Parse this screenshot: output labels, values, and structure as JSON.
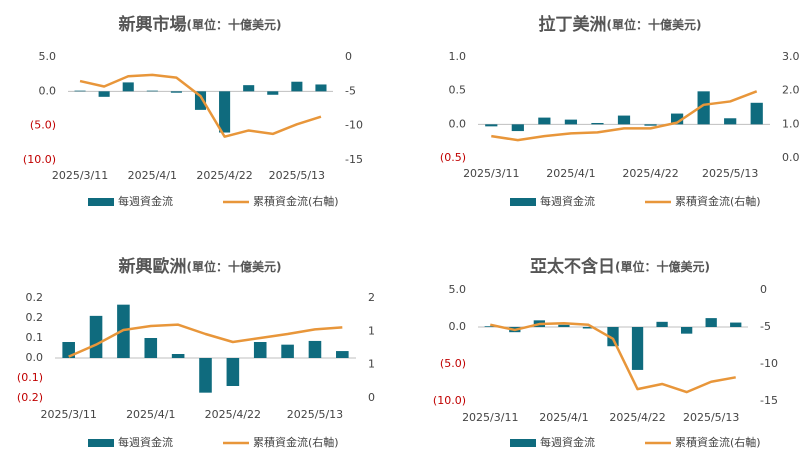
{
  "chart_data": [
    {
      "type": "bar-line",
      "title": "新興市場",
      "unit": "(單位：十億美元)",
      "categories": [
        "2025/3/11",
        null,
        null,
        "2025/4/1",
        null,
        null,
        "2025/4/22",
        null,
        null,
        "2025/5/13",
        null
      ],
      "series": [
        {
          "name": "每週資金流",
          "color": "#0f6b7e",
          "kind": "bar",
          "values": [
            0.1,
            -0.8,
            1.3,
            0.1,
            -0.2,
            -2.7,
            -6.0,
            0.9,
            -0.5,
            1.4,
            1.0
          ]
        },
        {
          "name": "累積資金流(右軸)",
          "color": "#e8963a",
          "kind": "line",
          "axis": "y2",
          "values": [
            -3.5,
            -4.3,
            -2.8,
            -2.6,
            -3.0,
            -5.7,
            -11.6,
            -10.7,
            -11.2,
            -9.8,
            -8.7
          ]
        }
      ],
      "ylim": [
        -10,
        5
      ],
      "yticks": [
        {
          "value": 5,
          "label": "5.0"
        },
        {
          "value": 0,
          "label": "0.0"
        },
        {
          "value": -5,
          "label": "(5.0)"
        },
        {
          "value": -10,
          "label": "(10.0)"
        }
      ],
      "y2lim": [
        -15,
        0
      ],
      "y2ticks": [
        0,
        -5,
        -10,
        -15
      ],
      "negative_tick_color": "#c00000",
      "grid": false,
      "legend": "bottom"
    },
    {
      "type": "bar-line",
      "title": "拉丁美洲",
      "unit": "(單位：十億美元)",
      "categories": [
        "2025/3/11",
        null,
        null,
        "2025/4/1",
        null,
        null,
        "2025/4/22",
        null,
        null,
        "2025/5/13",
        null
      ],
      "series": [
        {
          "name": "每週資金流",
          "color": "#0f6b7e",
          "kind": "bar",
          "values": [
            -0.03,
            -0.1,
            0.1,
            0.07,
            0.02,
            0.13,
            -0.02,
            0.16,
            0.49,
            0.09,
            0.32
          ]
        },
        {
          "name": "累積資金流(右軸)",
          "color": "#e8963a",
          "kind": "line",
          "axis": "y2",
          "values": [
            0.65,
            0.53,
            0.65,
            0.73,
            0.76,
            0.88,
            0.88,
            1.05,
            1.58,
            1.68,
            1.98
          ]
        }
      ],
      "ylim": [
        -0.5,
        1
      ],
      "yticks": [
        {
          "value": 1,
          "label": "1.0"
        },
        0.5,
        {
          "value": 0,
          "label": "0.0"
        },
        {
          "value": -0.5,
          "label": "(0.5)"
        }
      ],
      "y2lim": [
        0,
        3
      ],
      "y2ticks": [
        {
          "value": 3,
          "label": "3.0"
        },
        {
          "value": 2,
          "label": "2.0"
        },
        {
          "value": 1,
          "label": "1.0"
        },
        {
          "value": 0,
          "label": "0.0"
        }
      ],
      "negative_tick_color": "#c00000",
      "grid": false,
      "legend": "bottom"
    },
    {
      "type": "bar-line",
      "title": "新興歐洲",
      "unit": "(單位：十億美元)",
      "categories": [
        "2025/3/11",
        null,
        null,
        "2025/4/1",
        null,
        null,
        "2025/4/22",
        null,
        null,
        "2025/5/13",
        null
      ],
      "series": [
        {
          "name": "每週資金流",
          "color": "#0f6b7e",
          "kind": "bar",
          "values": [
            0.06,
            0.158,
            0.2,
            0.075,
            0.015,
            -0.13,
            -0.105,
            0.06,
            0.05,
            0.064,
            0.026
          ]
        },
        {
          "name": "累積資金流(右軸)",
          "color": "#e8963a",
          "kind": "line",
          "axis": "y2",
          "values": [
            0.62,
            0.8,
            1.02,
            1.08,
            1.1,
            0.96,
            0.84,
            0.9,
            0.96,
            1.03,
            1.06
          ]
        }
      ],
      "ylim": [
        -0.15,
        0.225
      ],
      "yticks": [
        {
          "value": 0.225,
          "label": "0.2"
        },
        {
          "value": 0.15,
          "label": "0.2"
        },
        {
          "value": 0.075,
          "label": "0.1"
        },
        {
          "value": 0,
          "label": "0.0"
        },
        {
          "value": -0.075,
          "label": "(0.1)"
        },
        {
          "value": -0.15,
          "label": "(0.2)"
        }
      ],
      "y2lim": [
        0,
        1.5
      ],
      "y2ticks": [
        {
          "value": 1.5,
          "label": "2"
        },
        1,
        {
          "value": 0.5,
          "label": "1"
        },
        0
      ],
      "negative_tick_color": "#c00000",
      "grid": false,
      "legend": "bottom"
    },
    {
      "type": "bar-line",
      "title": "亞太不含日",
      "unit": "(單位：十億美元)",
      "categories": [
        "2025/3/11",
        null,
        null,
        "2025/4/1",
        null,
        null,
        "2025/4/22",
        null,
        null,
        "2025/5/13",
        null
      ],
      "series": [
        {
          "name": "每週資金流",
          "color": "#0f6b7e",
          "kind": "bar",
          "values": [
            0.1,
            -0.7,
            0.9,
            0.3,
            -0.2,
            -2.6,
            -5.8,
            0.7,
            -0.9,
            1.2,
            0.6
          ]
        },
        {
          "name": "累積資金流(右軸)",
          "color": "#e8963a",
          "kind": "line",
          "axis": "y2",
          "values": [
            -4.7,
            -5.4,
            -4.6,
            -4.5,
            -4.7,
            -6.6,
            -13.4,
            -12.7,
            -13.8,
            -12.4,
            -11.8
          ]
        }
      ],
      "ylim": [
        -10,
        5
      ],
      "yticks": [
        {
          "value": 5,
          "label": "5.0"
        },
        {
          "value": 0,
          "label": "0.0"
        },
        {
          "value": -5,
          "label": "(5.0)"
        },
        {
          "value": -10,
          "label": "(10.0)"
        }
      ],
      "y2lim": [
        -15,
        0
      ],
      "y2ticks": [
        0,
        -5,
        -10,
        -15
      ],
      "negative_tick_color": "#c00000",
      "grid": false,
      "legend": "bottom"
    }
  ]
}
